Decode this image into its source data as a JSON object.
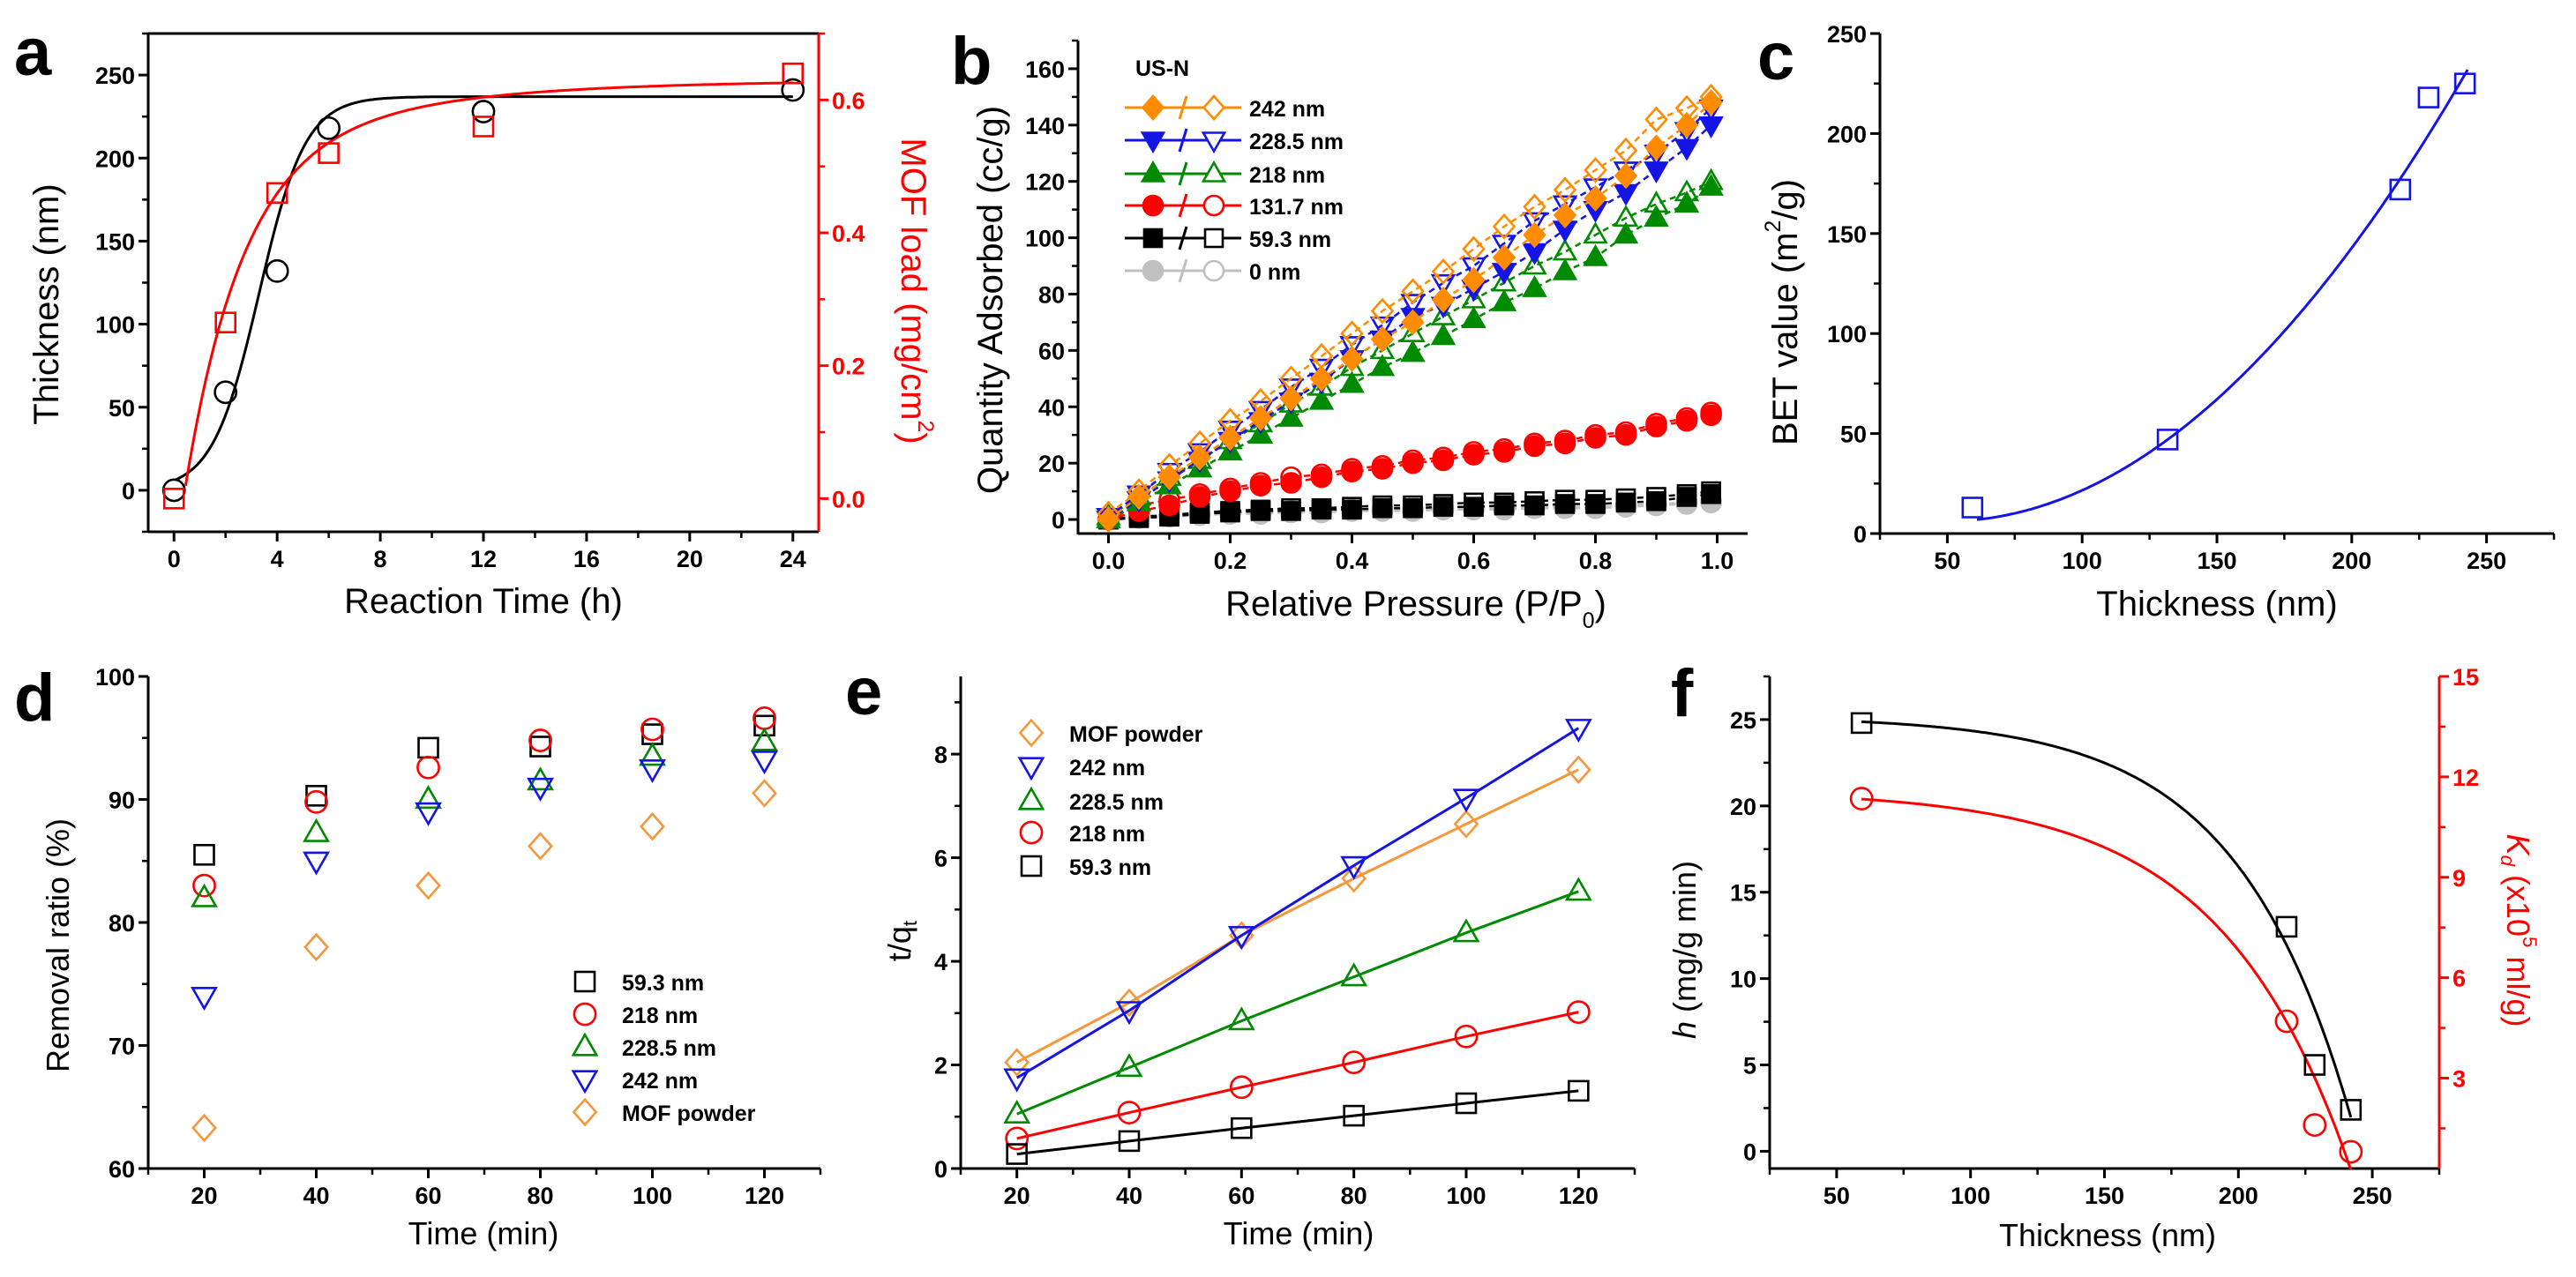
{
  "chart_data": [
    {
      "panel": "a",
      "type": "line",
      "xlabel": [
        {
          "t": "Reaction Time (h)"
        }
      ],
      "ylabel": [
        {
          "t": "Thickness (nm)"
        }
      ],
      "y2label": [
        {
          "t": "MOF load (mg/cm"
        },
        {
          "t": "2",
          "sup": true
        },
        {
          "t": ")"
        }
      ],
      "xlim": [
        -1,
        25
      ],
      "ylim": [
        -25,
        275
      ],
      "y2lim": [
        -0.05,
        0.7
      ],
      "xticks": [
        "0",
        "4",
        "8",
        "12",
        "16",
        "20",
        "24"
      ],
      "yticks": [
        "0",
        "50",
        "100",
        "150",
        "200",
        "250"
      ],
      "y2ticks": [
        "0.0",
        "0.2",
        "0.4",
        "0.6"
      ],
      "series": [
        {
          "axis": "left",
          "color": "#000000",
          "marker": "circle",
          "x": [
            0,
            2,
            4,
            6,
            12,
            24
          ],
          "y": [
            0,
            59,
            132,
            218,
            228,
            241
          ]
        },
        {
          "axis": "right",
          "color": "#FF0000",
          "marker": "square",
          "x": [
            0,
            2,
            4,
            6,
            12,
            24
          ],
          "y": [
            0.0,
            0.265,
            0.46,
            0.52,
            0.56,
            0.64
          ]
        }
      ]
    },
    {
      "panel": "b",
      "type": "line",
      "xlabel": [
        {
          "t": "Relative Pressure (P/P"
        },
        {
          "t": "0",
          "sub": true
        },
        {
          "t": ")"
        }
      ],
      "ylabel": [
        {
          "t": "Quantity Adsorbed (cc/g)"
        }
      ],
      "xlim": [
        -0.05,
        1.05
      ],
      "ylim": [
        -5,
        170
      ],
      "xticks": [
        "0.0",
        "0.2",
        "0.4",
        "0.6",
        "0.8",
        "1.0"
      ],
      "yticks": [
        "0",
        "20",
        "40",
        "60",
        "80",
        "100",
        "120",
        "140",
        "160"
      ],
      "legend_title": "US-N",
      "legend_separator": "/",
      "pressure": [
        0,
        0.05,
        0.1,
        0.15,
        0.2,
        0.25,
        0.3,
        0.35,
        0.4,
        0.45,
        0.5,
        0.55,
        0.6,
        0.65,
        0.7,
        0.75,
        0.8,
        0.85,
        0.9,
        0.95,
        0.99
      ],
      "series": [
        {
          "name": "242 nm",
          "color": "#FF8C00",
          "marker": "diamond",
          "adsorption": [
            0,
            8,
            15,
            22,
            29,
            36,
            43,
            50,
            57,
            64,
            70,
            78,
            85,
            93,
            101,
            108,
            114,
            122,
            132,
            140,
            148
          ],
          "desorption": [
            2,
            10,
            19,
            27,
            35,
            42,
            50,
            58,
            66,
            74,
            81,
            88,
            96,
            104,
            111,
            117,
            124,
            131,
            142,
            146,
            150
          ]
        },
        {
          "name": "228.5 nm",
          "color": "#1414E6",
          "marker": "tri-down",
          "adsorption": [
            0,
            7,
            14,
            21,
            28,
            35,
            42,
            49,
            57,
            64,
            72,
            76,
            82,
            88,
            95,
            103,
            110,
            116,
            124,
            132,
            140
          ],
          "desorption": [
            1,
            9,
            17,
            24,
            32,
            39,
            47,
            54,
            62,
            69,
            77,
            84,
            90,
            98,
            106,
            112,
            118,
            124,
            130,
            138,
            146
          ]
        },
        {
          "name": "218 nm",
          "color": "#008A00",
          "marker": "tri-up",
          "adsorption": [
            0,
            6,
            12,
            18,
            24,
            30,
            36,
            42,
            48,
            54,
            59,
            65,
            71,
            77,
            82,
            88,
            93,
            101,
            107,
            112,
            118
          ],
          "desorption": [
            1,
            8,
            15,
            21,
            28,
            34,
            41,
            47,
            54,
            60,
            66,
            72,
            78,
            84,
            90,
            95,
            101,
            107,
            112,
            116,
            120
          ]
        },
        {
          "name": "131.7 nm",
          "color": "#FF0000",
          "marker": "circle",
          "adsorption": [
            0,
            3,
            5,
            8,
            10,
            12,
            13,
            15,
            17,
            18,
            20,
            21,
            23,
            24,
            26,
            27,
            29,
            30,
            33,
            35,
            37
          ],
          "desorption": [
            0,
            5,
            7,
            9,
            11,
            13,
            15,
            16,
            18,
            19,
            21,
            22,
            24,
            25,
            27,
            28,
            30,
            31,
            34,
            36,
            38
          ]
        },
        {
          "name": "59.3 nm",
          "color": "#000000",
          "marker": "square",
          "adsorption": [
            0,
            0.5,
            1,
            2,
            2.5,
            3,
            3,
            3.5,
            3.5,
            4,
            4,
            4.5,
            4.5,
            5,
            5,
            5.5,
            5.5,
            6,
            6.5,
            8,
            9
          ],
          "desorption": [
            0,
            1,
            1.5,
            2.5,
            3,
            3.5,
            4,
            4,
            4.5,
            5,
            5,
            5.5,
            6,
            6,
            6.5,
            7,
            7,
            7.5,
            8,
            9,
            10
          ]
        },
        {
          "name": "0 nm",
          "color": "#C0C0C0",
          "marker": "circle",
          "adsorption": [
            0,
            0.5,
            1,
            1.5,
            2,
            2,
            2.5,
            2.5,
            3,
            3,
            3,
            3.5,
            3.5,
            3.5,
            4,
            4,
            4,
            4.5,
            5,
            5.5,
            6
          ],
          "desorption": [
            0.5,
            1,
            1.5,
            2,
            2.5,
            2.5,
            3,
            3,
            3.5,
            3.5,
            3.5,
            4,
            4,
            4,
            4.5,
            4.5,
            4.5,
            5,
            5.5,
            6,
            6.5
          ]
        }
      ]
    },
    {
      "panel": "c",
      "type": "scatter",
      "xlabel": [
        {
          "t": "Thickness (nm)"
        }
      ],
      "ylabel": [
        {
          "t": "BET value (m"
        },
        {
          "t": "2",
          "sup": true
        },
        {
          "t": "/g)"
        }
      ],
      "xlim": [
        25,
        275
      ],
      "ylim": [
        0,
        250
      ],
      "xticks": [
        "50",
        "100",
        "150",
        "200",
        "250"
      ],
      "yticks": [
        "0",
        "50",
        "100",
        "150",
        "200",
        "250"
      ],
      "series": [
        {
          "axis": "left",
          "color": "#1414E6",
          "marker": "square",
          "x": [
            59.3,
            131.7,
            218,
            228.5,
            242
          ],
          "y": [
            13,
            47,
            172,
            218,
            225
          ]
        }
      ]
    },
    {
      "panel": "d",
      "type": "scatter",
      "xlabel": [
        {
          "t": "Time (min)"
        }
      ],
      "ylabel": [
        {
          "t": "Removal ratio (%)"
        }
      ],
      "xlim": [
        10,
        130
      ],
      "ylim": [
        60,
        100
      ],
      "xticks": [
        "20",
        "40",
        "60",
        "80",
        "100",
        "120"
      ],
      "yticks": [
        "60",
        "70",
        "80",
        "90",
        "100"
      ],
      "x": [
        20,
        40,
        60,
        80,
        100,
        120
      ],
      "series": [
        {
          "name": "59.3 nm",
          "color": "#000000",
          "marker": "square",
          "y": [
            85.5,
            90.3,
            94.2,
            94.3,
            95.3,
            96.0
          ]
        },
        {
          "name": "218 nm",
          "color": "#FF0000",
          "marker": "circle",
          "y": [
            83.0,
            89.8,
            92.6,
            94.8,
            95.7,
            96.6
          ]
        },
        {
          "name": "228.5 nm",
          "color": "#008A00",
          "marker": "tri-up",
          "y": [
            82.0,
            87.3,
            90.0,
            91.5,
            93.5,
            94.7
          ]
        },
        {
          "name": "242 nm",
          "color": "#1414E6",
          "marker": "tri-down",
          "y": [
            74.0,
            85.0,
            89.0,
            91.0,
            92.5,
            93.2
          ]
        },
        {
          "name": "MOF powder",
          "color": "#F7963B",
          "marker": "diamond",
          "y": [
            63.3,
            78.0,
            83.0,
            86.2,
            87.8,
            90.5
          ]
        }
      ]
    },
    {
      "panel": "e",
      "type": "line",
      "xlabel": [
        {
          "t": "Time (min)"
        }
      ],
      "ylabel": [
        {
          "t": "t/q"
        },
        {
          "t": "t",
          "sub": true
        }
      ],
      "xlim": [
        10,
        130
      ],
      "ylim": [
        0,
        9.5
      ],
      "xticks": [
        "20",
        "40",
        "60",
        "80",
        "100",
        "120"
      ],
      "yticks": [
        "0",
        "2",
        "4",
        "6",
        "8"
      ],
      "x": [
        20,
        40,
        60,
        80,
        100,
        120
      ],
      "series": [
        {
          "name": "MOF powder",
          "color": "#F7963B",
          "marker": "diamond",
          "y": [
            2.05,
            3.2,
            4.5,
            5.6,
            6.65,
            7.7
          ]
        },
        {
          "name": "242 nm",
          "color": "#1414E6",
          "marker": "tri-down",
          "y": [
            1.75,
            3.05,
            4.5,
            5.85,
            7.15,
            8.5
          ]
        },
        {
          "name": "228.5 nm",
          "color": "#008A00",
          "marker": "tri-up",
          "y": [
            1.05,
            1.95,
            2.85,
            3.7,
            4.55,
            5.35
          ]
        },
        {
          "name": "218 nm",
          "color": "#FF0000",
          "marker": "circle",
          "y": [
            0.58,
            1.08,
            1.57,
            2.05,
            2.55,
            3.02
          ]
        },
        {
          "name": "59.3 nm",
          "color": "#000000",
          "marker": "square",
          "y": [
            0.28,
            0.53,
            0.78,
            1.02,
            1.26,
            1.5
          ]
        }
      ]
    },
    {
      "panel": "f",
      "type": "line",
      "xlabel": [
        {
          "t": "Thickness (nm)"
        }
      ],
      "ylabel": [
        {
          "t": "h",
          "i": true
        },
        {
          "t": " (mg/g min)"
        }
      ],
      "y2label": [
        {
          "t": "K",
          "i": true
        },
        {
          "t": "d",
          "sub": true,
          "i": true
        },
        {
          "t": " (x10"
        },
        {
          "t": "5",
          "sup": true
        },
        {
          "t": " ml/g)"
        }
      ],
      "xlim": [
        25,
        275
      ],
      "ylim": [
        -1,
        27.5
      ],
      "y2lim": [
        0.3,
        15
      ],
      "xticks": [
        "50",
        "100",
        "150",
        "200",
        "250"
      ],
      "yticks": [
        "0",
        "5",
        "10",
        "15",
        "20",
        "25"
      ],
      "y2ticks": [
        "3",
        "6",
        "9",
        "12",
        "15"
      ],
      "series": [
        {
          "axis": "left",
          "color": "#000000",
          "marker": "square",
          "x": [
            59.3,
            218,
            228.5,
            242
          ],
          "y": [
            24.8,
            13.0,
            5.0,
            2.4
          ]
        },
        {
          "axis": "right",
          "color": "#FF0000",
          "marker": "circle",
          "x": [
            59.3,
            218,
            228.5,
            242
          ],
          "y": [
            11.35,
            4.7,
            1.6,
            0.8
          ]
        }
      ]
    }
  ]
}
